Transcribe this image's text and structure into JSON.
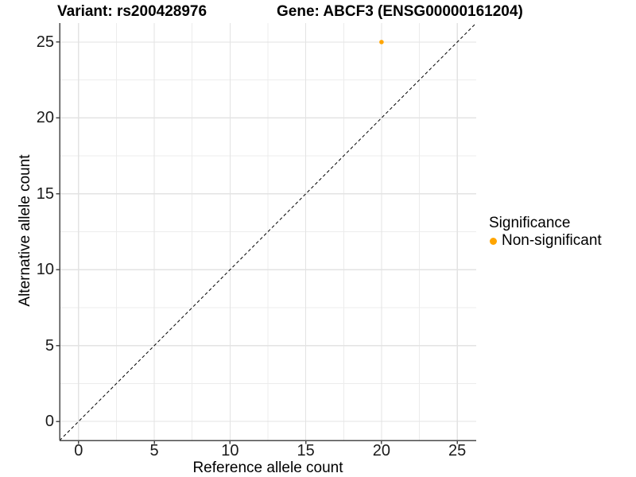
{
  "title": {
    "variant": "Variant: rs200428976",
    "gene": "Gene: ABCF3 (ENSG00000161204)"
  },
  "axes": {
    "x_label": "Reference allele count",
    "y_label": "Alternative allele count"
  },
  "legend": {
    "title": "Significance",
    "items": [
      {
        "label": "Non-significant",
        "color": "#FFA500"
      }
    ]
  },
  "chart_data": {
    "type": "scatter",
    "title": "Variant: rs200428976 — Gene: ABCF3 (ENSG00000161204)",
    "xlabel": "Reference allele count",
    "ylabel": "Alternative allele count",
    "xlim": [
      -1.25,
      26.25
    ],
    "ylim": [
      -1.25,
      26.25
    ],
    "x_ticks": [
      0,
      5,
      10,
      15,
      20,
      25
    ],
    "y_ticks": [
      0,
      5,
      10,
      15,
      20,
      25
    ],
    "grid": "on",
    "legend_position": "right",
    "series": [
      {
        "name": "Non-significant",
        "color": "#FFA500",
        "points": [
          {
            "x": 20,
            "y": 25
          }
        ]
      }
    ],
    "reference_line": {
      "type": "identity-y-equals-x",
      "from": -1.25,
      "to": 26.25,
      "style": "dashed",
      "color": "#000000"
    },
    "colors": {
      "background": "#FFFFFF",
      "grid_major": "#E3E3E3",
      "grid_minor": "#ECECEC",
      "axis_line": "#4a4a4a",
      "tick_label": "#1a1a1a",
      "point": "#FFA500"
    }
  }
}
